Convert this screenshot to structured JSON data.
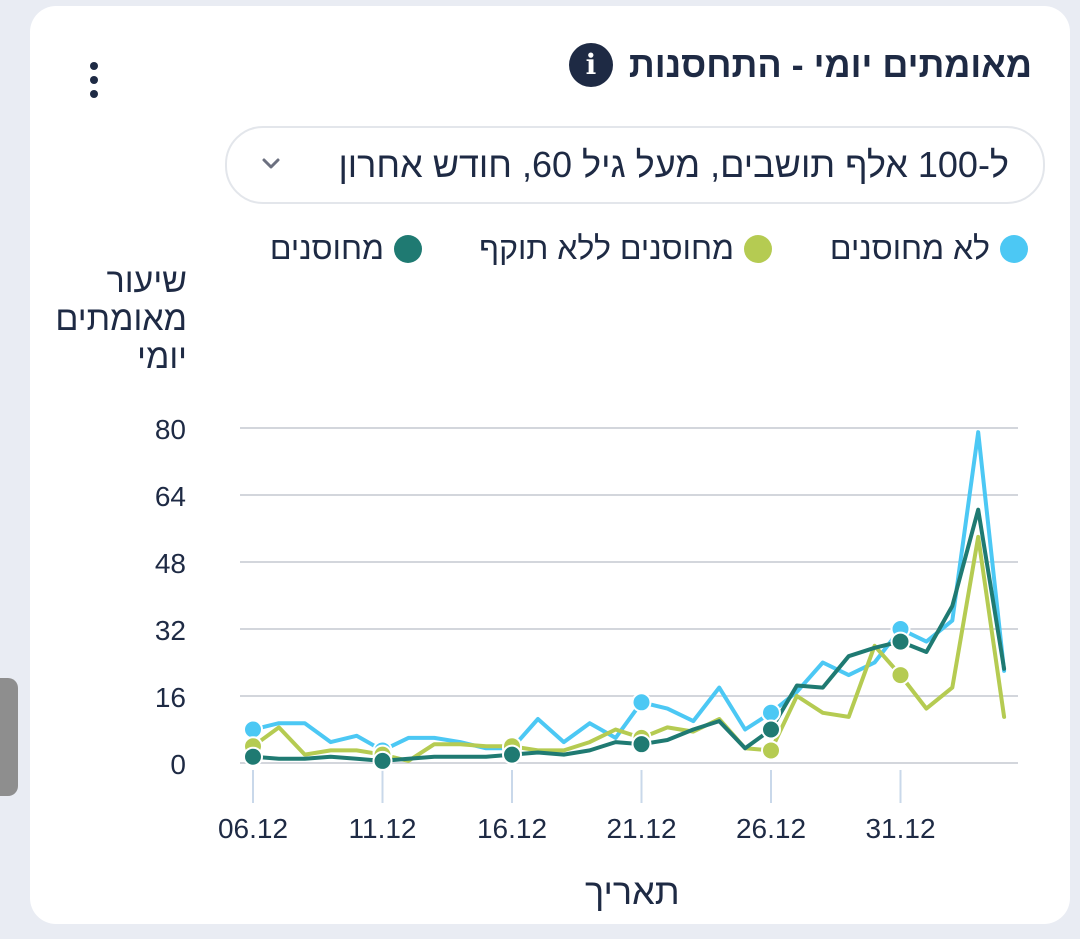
{
  "header": {
    "title": "מאומתים יומי - התחסנות"
  },
  "filter": {
    "value": "ל-100 אלף תושבים, מעל גיל 60, חודש אחרון"
  },
  "icons": {
    "info": "info-icon",
    "menu": "more-vertical-icon",
    "dropdown": "chevron-down-icon"
  },
  "chart_data": {
    "type": "line",
    "ylabel": "שיעור מאומתים יומי",
    "xlabel": "תאריך",
    "ylim": [
      0,
      80
    ],
    "yticks": [
      0,
      16,
      32,
      48,
      64,
      80
    ],
    "xticks": [
      "06.12",
      "11.12",
      "16.12",
      "21.12",
      "26.12",
      "31.12"
    ],
    "x": [
      "06.12",
      "07.12",
      "08.12",
      "09.12",
      "10.12",
      "11.12",
      "12.12",
      "13.12",
      "14.12",
      "15.12",
      "16.12",
      "17.12",
      "18.12",
      "19.12",
      "20.12",
      "21.12",
      "22.12",
      "23.12",
      "24.12",
      "25.12",
      "26.12",
      "27.12",
      "28.12",
      "29.12",
      "30.12",
      "31.12",
      "01.01",
      "02.01",
      "03.01",
      "04.01"
    ],
    "grid": true,
    "legend_position": "top",
    "series": [
      {
        "name": "לא מחוסנים",
        "color": "#4cc8f4",
        "values": [
          8,
          9.5,
          9.5,
          5,
          6.5,
          3,
          6,
          6,
          5,
          3.5,
          3.5,
          10.5,
          5,
          9.5,
          6,
          14.5,
          13,
          10,
          18,
          8,
          12,
          17,
          24,
          21,
          24,
          32,
          29,
          34,
          79,
          22
        ]
      },
      {
        "name": "מחוסנים ללא תוקף",
        "color": "#b5cb52",
        "values": [
          4,
          8.5,
          2,
          3,
          3,
          2,
          0.5,
          4.5,
          4.5,
          4,
          4,
          3,
          3,
          5,
          8,
          6,
          8.5,
          7.5,
          10.5,
          3.5,
          3,
          16,
          12,
          11,
          28,
          21,
          13,
          18,
          54,
          11
        ]
      },
      {
        "name": "מחוסנים",
        "color": "#1f7a72",
        "values": [
          1.5,
          1,
          1,
          1.5,
          1,
          0.5,
          1,
          1.5,
          1.5,
          1.5,
          2,
          2.5,
          2,
          3,
          5,
          4.5,
          5.5,
          8,
          10,
          3.5,
          8,
          18.5,
          18,
          25.5,
          27.5,
          29,
          26.5,
          37.5,
          60.5,
          22.5
        ]
      }
    ],
    "markers": {
      "show_every": 5
    }
  }
}
